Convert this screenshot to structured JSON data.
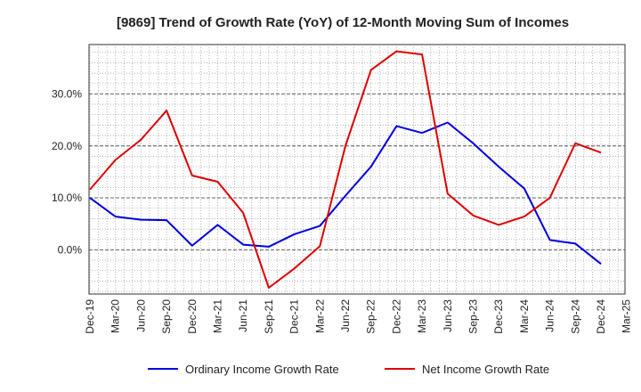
{
  "chart_data": {
    "type": "line",
    "title": "[9869]  Trend of Growth Rate (YoY) of 12-Month Moving Sum of Incomes",
    "xlabel": "",
    "ylabel": "",
    "x": [
      "Dec-19",
      "Mar-20",
      "Jun-20",
      "Sep-20",
      "Dec-20",
      "Mar-21",
      "Jun-21",
      "Sep-21",
      "Dec-21",
      "Mar-22",
      "Jun-22",
      "Sep-22",
      "Dec-22",
      "Mar-23",
      "Jun-23",
      "Sep-23",
      "Dec-23",
      "Mar-24",
      "Jun-24",
      "Sep-24",
      "Dec-24",
      "Mar-25"
    ],
    "ylim": [
      -8.5,
      39.5
    ],
    "y_ticks": [
      0,
      10,
      20,
      30
    ],
    "y_tick_labels": [
      "0.0%",
      "10.0%",
      "20.0%",
      "30.0%"
    ],
    "grid": true,
    "legend_position": "bottom",
    "series": [
      {
        "name": "Ordinary Income Growth Rate",
        "color": "#0000dd",
        "values": [
          10.0,
          6.4,
          5.8,
          5.7,
          0.8,
          4.8,
          1.0,
          0.6,
          3.0,
          4.6,
          10.4,
          16.0,
          23.8,
          22.5,
          24.5,
          20.5,
          16.0,
          11.8,
          1.9,
          1.2,
          -2.7,
          null
        ]
      },
      {
        "name": "Net Income Growth Rate",
        "color": "#dd0000",
        "values": [
          11.6,
          17.3,
          21.2,
          26.8,
          14.3,
          13.1,
          7.1,
          -7.3,
          -3.6,
          0.7,
          20.0,
          34.6,
          38.2,
          37.6,
          10.8,
          6.6,
          4.8,
          6.4,
          10.0,
          20.5,
          18.7,
          null
        ]
      }
    ]
  }
}
